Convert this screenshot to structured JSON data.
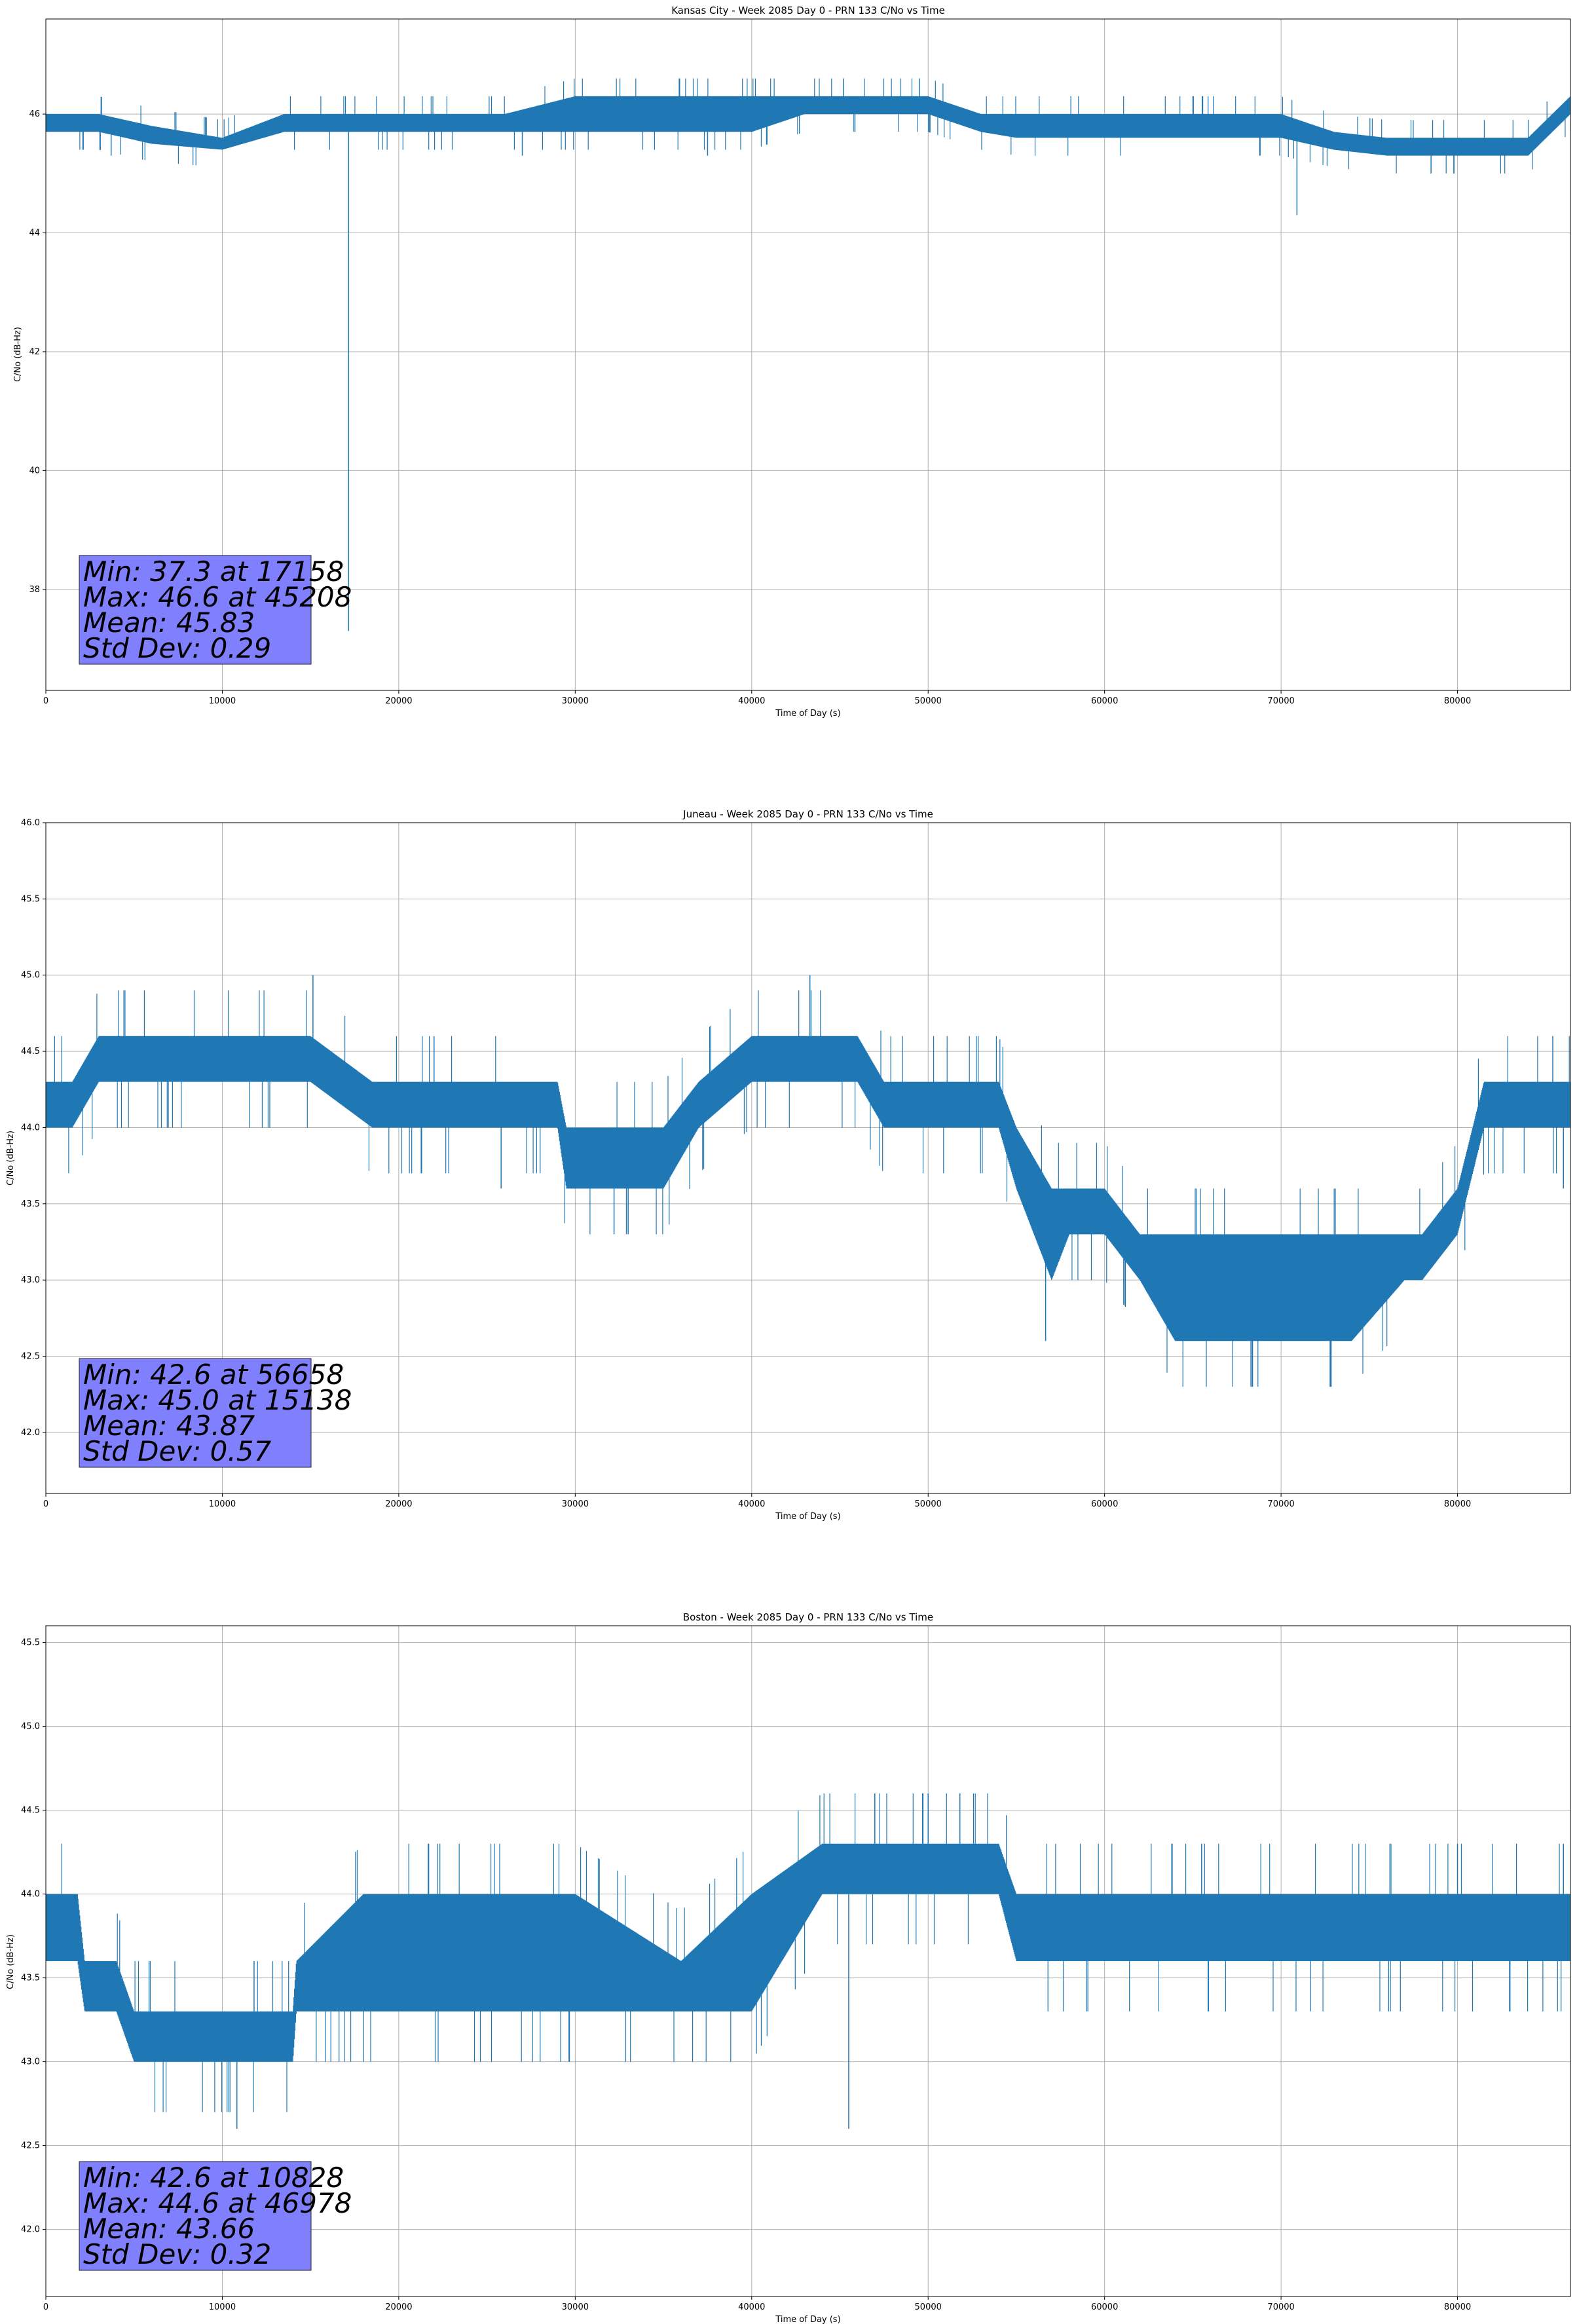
{
  "chart_data": [
    {
      "type": "line",
      "title": "Kansas City - Week 2085 Day 0 - PRN 133 C/No vs Time",
      "xlabel": "Time of Day (s)",
      "ylabel": "C/No (dB-Hz)",
      "xlim": [
        0,
        86400
      ],
      "ylim": [
        36.3,
        47.6
      ],
      "xticks": [
        0,
        10000,
        20000,
        30000,
        40000,
        50000,
        60000,
        70000,
        80000
      ],
      "yticks": [
        38,
        40,
        42,
        44,
        46
      ],
      "ytick_labels": [
        "38",
        "40",
        "42",
        "44",
        "46"
      ],
      "grid": true,
      "series_color": "#1f77b4",
      "band": {
        "x": [
          0,
          3000,
          6000,
          10000,
          13500,
          17000,
          20000,
          26000,
          30000,
          35000,
          40000,
          43000,
          47000,
          50000,
          53000,
          55000,
          58000,
          62000,
          66000,
          70000,
          73000,
          76000,
          80000,
          84000,
          86400
        ],
        "low": [
          45.7,
          45.7,
          45.5,
          45.4,
          45.7,
          45.7,
          45.7,
          45.7,
          45.7,
          45.7,
          45.7,
          46.0,
          46.0,
          46.0,
          45.7,
          45.6,
          45.6,
          45.6,
          45.6,
          45.6,
          45.4,
          45.3,
          45.3,
          45.3,
          46.0
        ],
        "high": [
          46.0,
          46.0,
          45.8,
          45.6,
          46.0,
          46.0,
          46.0,
          46.0,
          46.3,
          46.3,
          46.3,
          46.3,
          46.3,
          46.3,
          46.0,
          46.0,
          46.0,
          46.0,
          46.0,
          46.0,
          45.7,
          45.6,
          45.6,
          45.6,
          46.3
        ]
      },
      "spikes": [
        [
          3700,
          45.3
        ],
        [
          17158,
          37.3
        ],
        [
          45208,
          46.6
        ],
        [
          49500,
          46.6
        ],
        [
          70900,
          44.3
        ],
        [
          78500,
          45.0
        ],
        [
          79800,
          45.0
        ],
        [
          27000,
          45.3
        ],
        [
          37500,
          45.3
        ]
      ],
      "stats": {
        "min": "Min: 37.3 at 17158",
        "max": "Max: 46.6 at 45208",
        "mean": "Mean: 45.83",
        "std": "Std Dev: 0.29"
      }
    },
    {
      "type": "line",
      "title": "Juneau - Week 2085 Day 0 - PRN 133 C/No vs Time",
      "xlabel": "Time of Day (s)",
      "ylabel": "C/No (dB-Hz)",
      "xlim": [
        0,
        86400
      ],
      "ylim": [
        41.6,
        46.0
      ],
      "xticks": [
        0,
        10000,
        20000,
        30000,
        40000,
        50000,
        60000,
        70000,
        80000
      ],
      "yticks": [
        42.0,
        42.5,
        43.0,
        43.5,
        44.0,
        44.5,
        45.0,
        45.5,
        46.0
      ],
      "ytick_labels": [
        "42.0",
        "42.5",
        "43.0",
        "43.5",
        "44.0",
        "44.5",
        "45.0",
        "45.5",
        "46.0"
      ],
      "grid": true,
      "series_color": "#1f77b4",
      "band": {
        "x": [
          0,
          1500,
          3000,
          10000,
          15000,
          18500,
          19000,
          25000,
          29000,
          29500,
          35000,
          37000,
          40000,
          46000,
          47500,
          54000,
          55000,
          57000,
          58000,
          60000,
          62000,
          64000,
          66000,
          70000,
          74000,
          77000,
          78000,
          80000,
          81500,
          86400
        ],
        "low": [
          44.0,
          44.0,
          44.3,
          44.3,
          44.3,
          44.0,
          44.0,
          44.0,
          44.0,
          43.6,
          43.6,
          44.0,
          44.3,
          44.3,
          44.0,
          44.0,
          43.6,
          43.0,
          43.3,
          43.3,
          43.0,
          42.6,
          42.6,
          42.6,
          42.6,
          43.0,
          43.0,
          43.3,
          44.0,
          44.0
        ],
        "high": [
          44.3,
          44.3,
          44.6,
          44.6,
          44.6,
          44.3,
          44.3,
          44.3,
          44.3,
          44.0,
          44.0,
          44.3,
          44.6,
          44.6,
          44.3,
          44.3,
          44.0,
          43.6,
          43.6,
          43.6,
          43.3,
          43.3,
          43.3,
          43.3,
          43.3,
          43.3,
          43.3,
          43.6,
          44.3,
          44.3
        ]
      },
      "spikes": [
        [
          15138,
          45.0
        ],
        [
          43300,
          45.0
        ],
        [
          56658,
          42.6
        ],
        [
          32200,
          43.3
        ],
        [
          33000,
          43.3
        ],
        [
          85400,
          44.6
        ],
        [
          86000,
          43.6
        ],
        [
          25800,
          43.6
        ],
        [
          22000,
          44.6
        ]
      ],
      "stats": {
        "min": "Min: 42.6 at 56658",
        "max": "Max: 45.0 at 15138",
        "mean": "Mean: 43.87",
        "std": "Std Dev: 0.57"
      }
    },
    {
      "type": "line",
      "title": "Boston - Week 2085 Day 0 - PRN 133 C/No vs Time",
      "xlabel": "Time of Day (s)",
      "ylabel": "C/No (dB-Hz)",
      "xlim": [
        0,
        86400
      ],
      "ylim": [
        41.6,
        45.6
      ],
      "xticks": [
        0,
        10000,
        20000,
        30000,
        40000,
        50000,
        60000,
        70000,
        80000
      ],
      "yticks": [
        42.0,
        42.5,
        43.0,
        43.5,
        44.0,
        44.5,
        45.0,
        45.5
      ],
      "ytick_labels": [
        "42.0",
        "42.5",
        "43.0",
        "43.5",
        "44.0",
        "44.5",
        "45.0",
        "45.5"
      ],
      "grid": true,
      "series_color": "#1f77b4",
      "band": {
        "x": [
          0,
          1800,
          2200,
          4000,
          5000,
          12000,
          14000,
          14200,
          18000,
          22000,
          28000,
          30000,
          36000,
          40000,
          44000,
          44300,
          48000,
          54000,
          55000,
          62000,
          70000,
          80000,
          86400
        ],
        "low": [
          43.6,
          43.6,
          43.3,
          43.3,
          43.0,
          43.0,
          43.0,
          43.3,
          43.3,
          43.3,
          43.3,
          43.3,
          43.3,
          43.3,
          44.0,
          44.0,
          44.0,
          44.0,
          43.6,
          43.6,
          43.6,
          43.6,
          43.6
        ],
        "high": [
          44.0,
          44.0,
          43.6,
          43.6,
          43.3,
          43.3,
          43.3,
          43.6,
          44.0,
          44.0,
          44.0,
          44.0,
          43.6,
          44.0,
          44.3,
          44.3,
          44.3,
          44.3,
          44.0,
          44.0,
          44.0,
          44.0,
          44.0
        ]
      },
      "spikes": [
        [
          10828,
          42.6
        ],
        [
          45500,
          42.6
        ],
        [
          46978,
          44.6
        ],
        [
          50000,
          44.6
        ],
        [
          51800,
          44.6
        ],
        [
          65500,
          44.3
        ],
        [
          80000,
          44.3
        ],
        [
          86000,
          44.3
        ],
        [
          11800,
          43.6
        ]
      ],
      "stats": {
        "min": "Min: 42.6 at 10828",
        "max": "Max: 44.6 at 46978",
        "mean": "Mean: 43.66",
        "std": "Std Dev: 0.32"
      }
    }
  ]
}
